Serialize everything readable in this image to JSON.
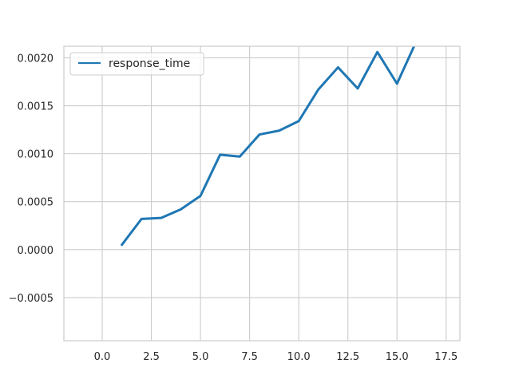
{
  "chart_data": {
    "type": "line",
    "title": "",
    "xlabel": "",
    "ylabel": "",
    "xlim": [
      -1.95,
      18.2
    ],
    "ylim": [
      -0.00095,
      0.00212
    ],
    "xticks": [
      0.0,
      2.5,
      5.0,
      7.5,
      10.0,
      12.5,
      15.0,
      17.5
    ],
    "xtick_labels": [
      "0.0",
      "2.5",
      "5.0",
      "7.5",
      "10.0",
      "12.5",
      "15.0",
      "17.5"
    ],
    "yticks": [
      -0.0005,
      0.0,
      0.0005,
      0.001,
      0.0015,
      0.002
    ],
    "ytick_labels": [
      "−0.0005",
      "0.0000",
      "0.0005",
      "0.0010",
      "0.0015",
      "0.0020"
    ],
    "grid": true,
    "legend": "top-left",
    "series": [
      {
        "name": "response_time",
        "color": "#1f77b4",
        "x": [
          1,
          2,
          3,
          4,
          5,
          6,
          7,
          8,
          9,
          10,
          11,
          12,
          13,
          14,
          15,
          16
        ],
        "y": [
          5e-05,
          0.00032,
          0.00033,
          0.00042,
          0.00056,
          0.00099,
          0.00097,
          0.0012,
          0.00124,
          0.00134,
          0.00167,
          0.0019,
          0.00168,
          0.00206,
          0.00173,
          0.00218
        ]
      }
    ]
  }
}
